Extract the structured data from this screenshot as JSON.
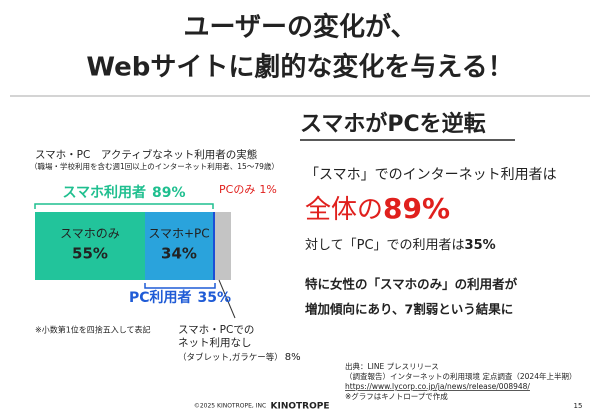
{
  "header": {
    "title_lines": [
      "ユーザーの変化が、",
      "Webサイトに劇的な変化を与える！"
    ]
  },
  "chart_data": {
    "type": "bar",
    "orientation": "horizontal",
    "stacked": true,
    "title": "スマホ・PC　アクティブなネット利用者の実態",
    "subtitle": "（職場・学校利用を含む週1回以上のインターネット利用者、15～79歳）",
    "xlim": [
      0,
      100
    ],
    "series": [
      {
        "name": "スマホのみ",
        "color": "#22c49b",
        "values": [
          55
        ],
        "value_labels": [
          "55%"
        ]
      },
      {
        "name": "スマホ+PC",
        "color": "#2aa3dc",
        "values": [
          34
        ],
        "value_labels": [
          "34%"
        ]
      },
      {
        "name": "PCのみ",
        "color": "#1b4fd6",
        "values": [
          1
        ],
        "value_labels": [
          "1%"
        ]
      },
      {
        "name": "スマホ・PCでの\nネット利用なし",
        "note": "（タブレット,ガラケー等）",
        "color": "#c4c4c4",
        "values": [
          8
        ],
        "value_labels": [
          "8%"
        ]
      }
    ],
    "annotations": [
      {
        "label": "スマホ利用者",
        "value": 89,
        "value_label": "89%",
        "color": "#1fbf8f"
      },
      {
        "label": "PC利用者",
        "value": 35,
        "value_label": "35%",
        "color": "#1f5bd6"
      }
    ],
    "note": "※小数第1位を四捨五入して表記"
  },
  "summary": {
    "heading": "スマホがPCを逆転",
    "line1": "「スマホ」でのインターネット利用者は",
    "line2_prefix": "全体の",
    "line2_value": "89%",
    "line3_prefix": "対して「PC」での利用者は",
    "line3_value": "35%",
    "line4": "特に女性の「スマホのみ」の利用者が",
    "line5": "増加傾向にあり、7割弱という結果に"
  },
  "source": {
    "lines": [
      "出典：LINE プレスリリース",
      "（調査報告）インターネットの利用環境 定点調査（2024年上半期）",
      "https://www.lycorp.co.jp/ja/news/release/008948/",
      "※グラフはキノトロープで作成"
    ]
  },
  "footer": {
    "copyright": "©2025 KINOTROPE, INC",
    "logo": "KINOTROPE",
    "page": "15"
  }
}
